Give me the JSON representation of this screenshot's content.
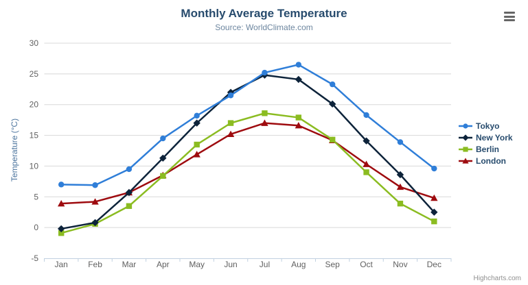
{
  "header": {
    "title": "Monthly Average Temperature",
    "subtitle": "Source: WorldClimate.com"
  },
  "export_menu": {
    "icon": "hamburger-icon"
  },
  "credits": {
    "label": "Highcharts.com"
  },
  "colors": {
    "title_text": "#274b6d",
    "subtitle_text": "#6d869f",
    "axis_title_text": "#4d759e",
    "axis_label_text": "#606060",
    "legend_text": "#274b6d",
    "grid_line": "#d8d8d8",
    "axis_line": "#c0d0e0",
    "credits_text": "#909090",
    "export_icon": "#666666"
  },
  "chart_data": {
    "type": "line",
    "title": "Monthly Average Temperature",
    "subtitle": "Source: WorldClimate.com",
    "categories": [
      "Jan",
      "Feb",
      "Mar",
      "Apr",
      "May",
      "Jun",
      "Jul",
      "Aug",
      "Sep",
      "Oct",
      "Nov",
      "Dec"
    ],
    "series": [
      {
        "name": "Tokyo",
        "color": "#2f7ed8",
        "marker": "circle",
        "values": [
          7.0,
          6.9,
          9.5,
          14.5,
          18.2,
          21.5,
          25.2,
          26.5,
          23.3,
          18.3,
          13.9,
          9.6
        ]
      },
      {
        "name": "New York",
        "color": "#0d233a",
        "marker": "diamond",
        "values": [
          -0.2,
          0.8,
          5.7,
          11.3,
          17.0,
          22.0,
          24.8,
          24.1,
          20.1,
          14.1,
          8.6,
          2.5
        ]
      },
      {
        "name": "Berlin",
        "color": "#8bbc21",
        "marker": "square",
        "values": [
          -0.9,
          0.6,
          3.5,
          8.4,
          13.5,
          17.0,
          18.6,
          17.9,
          14.3,
          9.0,
          3.9,
          1.0
        ]
      },
      {
        "name": "London",
        "color": "#9e0b0f",
        "marker": "triangle",
        "values": [
          3.9,
          4.2,
          5.7,
          8.5,
          11.9,
          15.2,
          17.0,
          16.6,
          14.2,
          10.3,
          6.6,
          4.8
        ]
      }
    ],
    "xlabel": "",
    "ylabel": "Temperature (°C)",
    "ylim": [
      -5,
      30
    ],
    "ytick_step": 5,
    "grid": true,
    "legend_position": "right-middle"
  }
}
